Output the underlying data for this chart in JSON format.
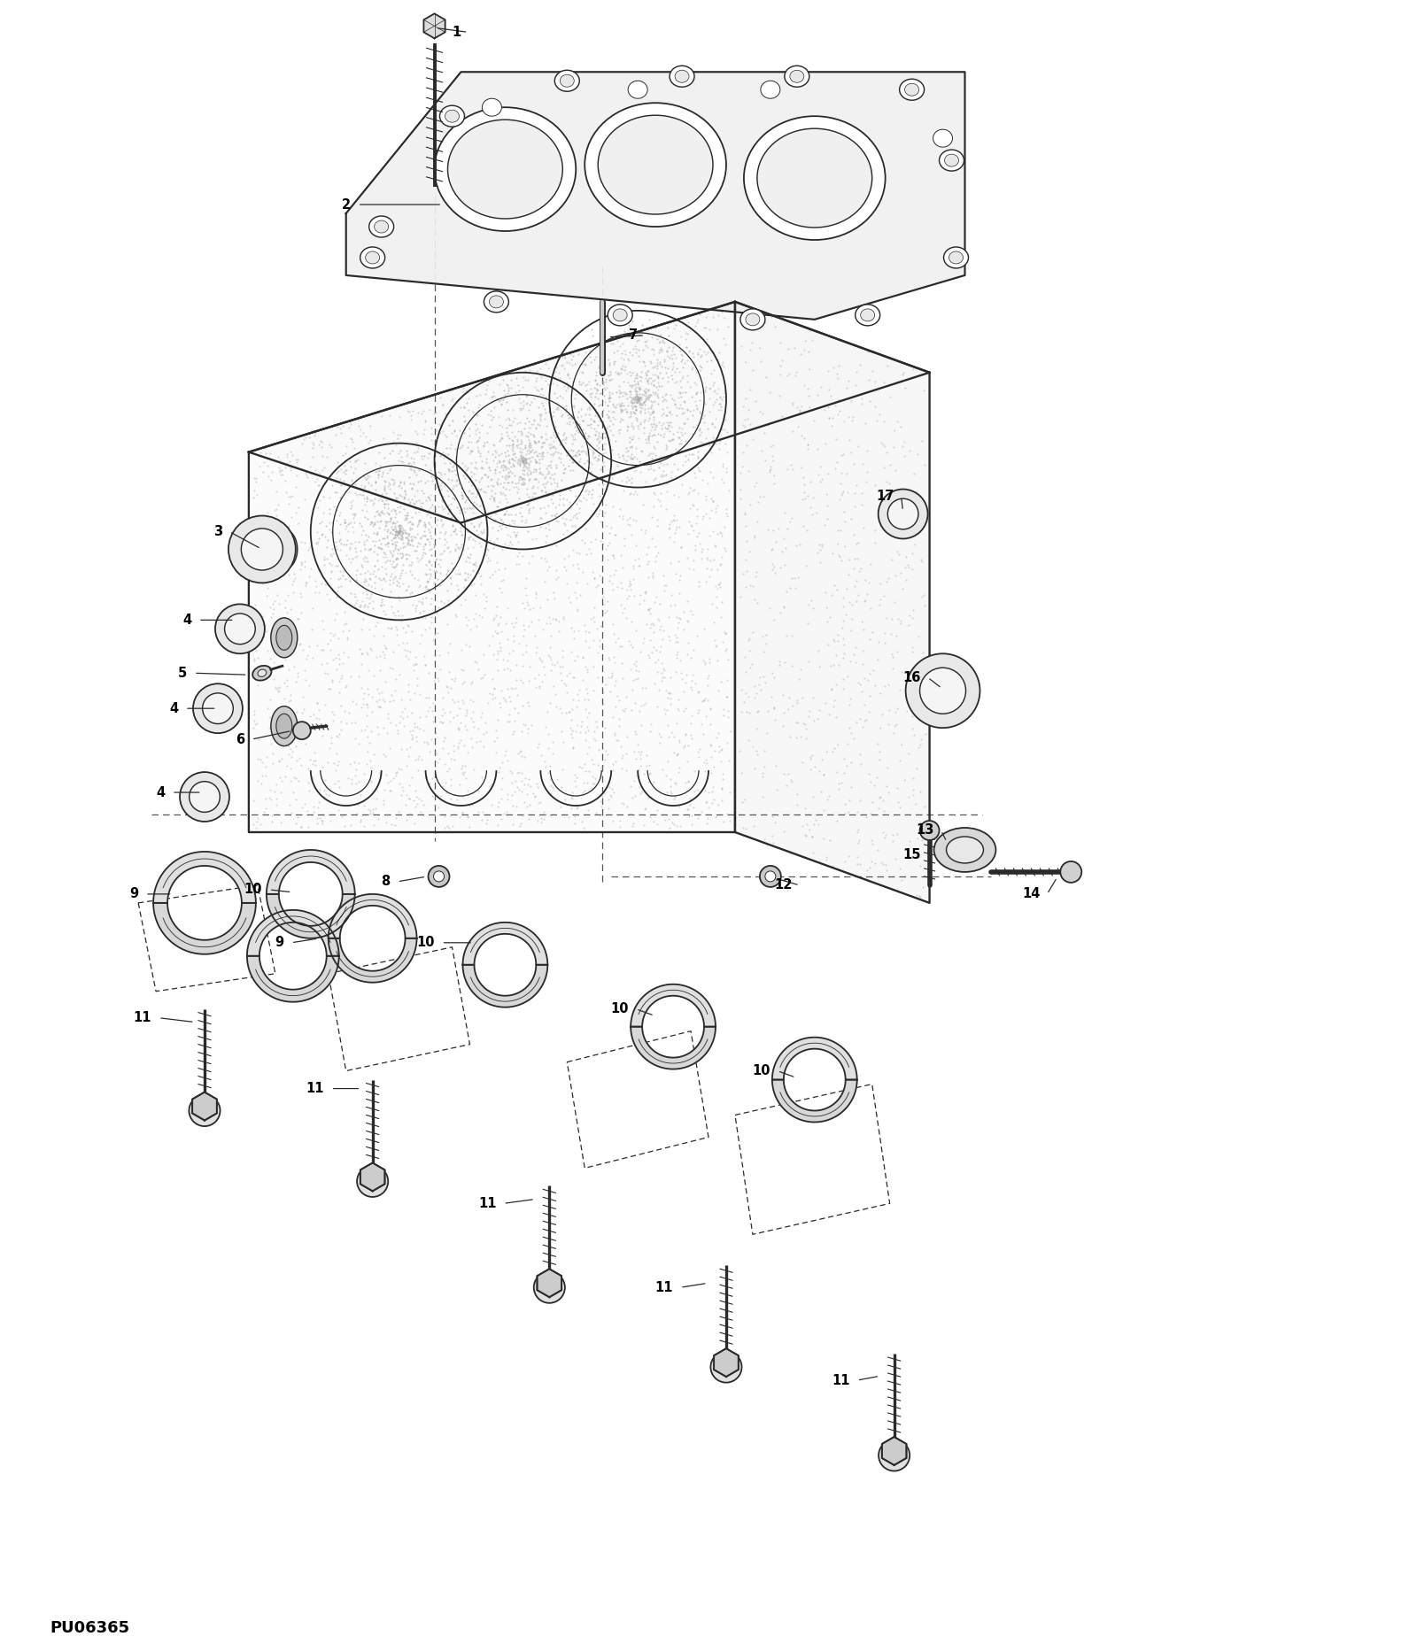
{
  "background_color": "#ffffff",
  "figure_width": 16.0,
  "figure_height": 18.66,
  "dpi": 100,
  "watermark": "PU06365",
  "line_color": "#2a2a2a",
  "dash_color": "#555555",
  "label_fontsize": 10.5,
  "label_fontweight": "bold",
  "stipple_color": "#aaaaaa",
  "part_numbers": [
    "1",
    "2",
    "3",
    "4",
    "4",
    "4",
    "5",
    "6",
    "7",
    "8",
    "9",
    "9",
    "10",
    "10",
    "10",
    "10",
    "11",
    "11",
    "11",
    "11",
    "11",
    "12",
    "13",
    "14",
    "15",
    "16",
    "17"
  ]
}
